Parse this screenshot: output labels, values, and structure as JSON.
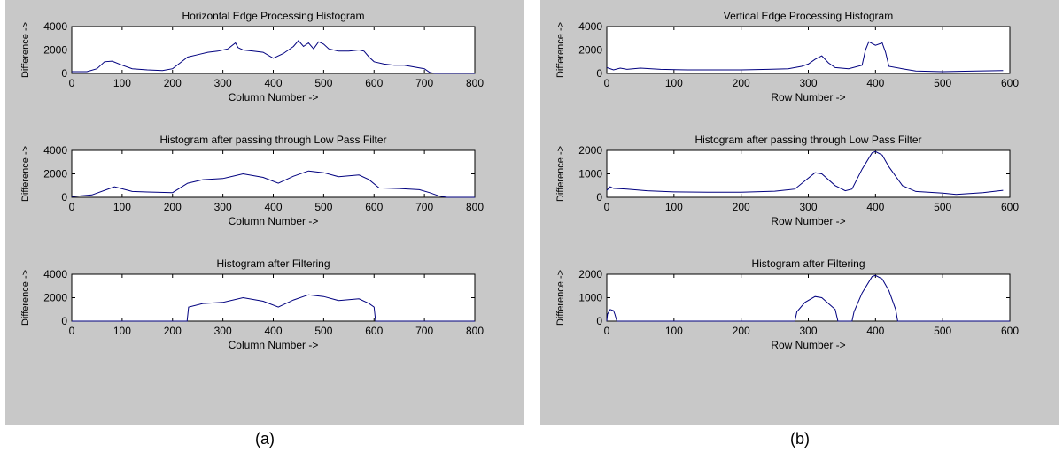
{
  "panels": [
    {
      "caption": "(a)",
      "charts": [
        {
          "type": "line",
          "title": "Horizontal Edge Processing Histogram",
          "xlabel": "Column Number ->",
          "ylabel": "Difference ->",
          "xlim": [
            0,
            800
          ],
          "ylim": [
            0,
            4000
          ],
          "xticks": [
            0,
            100,
            200,
            300,
            400,
            500,
            600,
            700,
            800
          ],
          "yticks": [
            0,
            2000,
            4000
          ],
          "color": "#00007f",
          "x": [
            0,
            30,
            50,
            65,
            80,
            100,
            120,
            150,
            180,
            200,
            215,
            230,
            250,
            270,
            290,
            310,
            325,
            330,
            340,
            360,
            380,
            400,
            420,
            440,
            450,
            460,
            470,
            480,
            490,
            500,
            510,
            530,
            550,
            570,
            580,
            590,
            600,
            620,
            640,
            660,
            680,
            700,
            710,
            720,
            800
          ],
          "y": [
            150,
            150,
            400,
            1000,
            1050,
            700,
            400,
            300,
            250,
            400,
            900,
            1400,
            1600,
            1800,
            1900,
            2100,
            2600,
            2200,
            2000,
            1900,
            1800,
            1300,
            1700,
            2300,
            2800,
            2300,
            2600,
            2100,
            2700,
            2500,
            2100,
            1900,
            1900,
            2000,
            1900,
            1400,
            1000,
            800,
            700,
            700,
            550,
            400,
            100,
            0,
            0
          ]
        },
        {
          "type": "line",
          "title": "Histogram after passing through Low Pass Filter",
          "xlabel": "Column Number ->",
          "ylabel": "Difference ->",
          "xlim": [
            0,
            800
          ],
          "ylim": [
            0,
            4000
          ],
          "xticks": [
            0,
            100,
            200,
            300,
            400,
            500,
            600,
            700,
            800
          ],
          "yticks": [
            0,
            2000,
            4000
          ],
          "color": "#00007f",
          "x": [
            0,
            40,
            85,
            120,
            150,
            200,
            230,
            260,
            300,
            340,
            380,
            410,
            440,
            470,
            500,
            530,
            570,
            590,
            610,
            650,
            690,
            710,
            730,
            745,
            800
          ],
          "y": [
            50,
            200,
            900,
            500,
            450,
            400,
            1200,
            1500,
            1600,
            2000,
            1700,
            1200,
            1800,
            2250,
            2100,
            1750,
            1900,
            1500,
            800,
            750,
            650,
            400,
            100,
            0,
            0
          ]
        },
        {
          "type": "line",
          "title": "Histogram after Filtering",
          "xlabel": "Column Number ->",
          "ylabel": "Difference ->",
          "xlim": [
            0,
            800
          ],
          "ylim": [
            0,
            4000
          ],
          "xticks": [
            0,
            100,
            200,
            300,
            400,
            500,
            600,
            700,
            800
          ],
          "yticks": [
            0,
            2000,
            4000
          ],
          "color": "#00007f",
          "x": [
            0,
            229,
            232,
            260,
            300,
            340,
            380,
            410,
            440,
            470,
            500,
            530,
            570,
            590,
            600,
            603,
            800
          ],
          "y": [
            0,
            0,
            1200,
            1500,
            1600,
            2000,
            1700,
            1200,
            1800,
            2250,
            2100,
            1750,
            1900,
            1500,
            1200,
            0,
            0
          ]
        }
      ]
    },
    {
      "caption": "(b)",
      "charts": [
        {
          "type": "line",
          "title": "Vertical Edge Processing Histogram",
          "xlabel": "Row Number ->",
          "ylabel": "Difference ->",
          "xlim": [
            0,
            600
          ],
          "ylim": [
            0,
            4000
          ],
          "xticks": [
            0,
            100,
            200,
            300,
            400,
            500,
            600
          ],
          "yticks": [
            0,
            2000,
            4000
          ],
          "color": "#00007f",
          "x": [
            0,
            10,
            20,
            30,
            50,
            80,
            120,
            160,
            200,
            240,
            270,
            290,
            300,
            310,
            320,
            330,
            340,
            360,
            380,
            385,
            390,
            400,
            410,
            415,
            420,
            440,
            460,
            500,
            550,
            590
          ],
          "y": [
            500,
            300,
            450,
            350,
            450,
            350,
            300,
            300,
            300,
            350,
            400,
            600,
            800,
            1200,
            1500,
            900,
            500,
            400,
            700,
            2000,
            2700,
            2400,
            2600,
            1800,
            600,
            400,
            200,
            150,
            200,
            250
          ]
        },
        {
          "type": "line",
          "title": "Histogram after passing through Low Pass Filter",
          "xlabel": "Row Number ->",
          "ylabel": "Difference ->",
          "xlim": [
            0,
            600
          ],
          "ylim": [
            0,
            2000
          ],
          "xticks": [
            0,
            100,
            200,
            300,
            400,
            500,
            600
          ],
          "yticks": [
            0,
            1000,
            2000
          ],
          "color": "#00007f",
          "x": [
            0,
            5,
            10,
            30,
            60,
            100,
            150,
            200,
            250,
            280,
            295,
            310,
            320,
            340,
            355,
            365,
            380,
            395,
            400,
            410,
            420,
            440,
            460,
            500,
            520,
            560,
            590
          ],
          "y": [
            300,
            450,
            380,
            350,
            280,
            230,
            220,
            220,
            260,
            350,
            700,
            1050,
            1000,
            500,
            280,
            350,
            1200,
            1900,
            1950,
            1800,
            1300,
            500,
            250,
            180,
            120,
            200,
            300
          ]
        },
        {
          "type": "line",
          "title": "Histogram after Filtering",
          "xlabel": "Row Number ->",
          "ylabel": "Difference ->",
          "xlim": [
            0,
            600
          ],
          "ylim": [
            0,
            2000
          ],
          "xticks": [
            0,
            100,
            200,
            300,
            400,
            500,
            600
          ],
          "yticks": [
            0,
            1000,
            2000
          ],
          "color": "#00007f",
          "x": [
            0,
            1,
            5,
            10,
            12,
            15,
            280,
            283,
            295,
            310,
            320,
            340,
            344,
            365,
            368,
            380,
            395,
            400,
            410,
            420,
            430,
            433,
            600
          ],
          "y": [
            0,
            300,
            500,
            450,
            300,
            0,
            0,
            400,
            800,
            1050,
            1000,
            500,
            0,
            0,
            400,
            1200,
            1900,
            1950,
            1800,
            1300,
            500,
            0,
            0
          ]
        }
      ]
    }
  ]
}
